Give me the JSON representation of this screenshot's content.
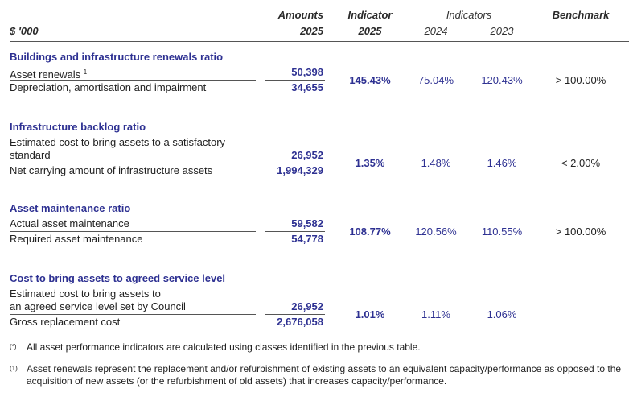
{
  "header": {
    "label": "$ '000",
    "amounts": [
      "Amounts",
      "2025"
    ],
    "indicator": [
      "Indicator",
      "2025"
    ],
    "indicators": "Indicators",
    "years": [
      "2024",
      "2023"
    ],
    "benchmark": "Benchmark"
  },
  "sections": [
    {
      "title": "Buildings and infrastructure renewals ratio",
      "numerator": {
        "label": [
          "Asset renewals"
        ],
        "note": "1",
        "value": "50,398"
      },
      "denominator": {
        "label": "Depreciation, amortisation and impairment",
        "value": "34,655"
      },
      "indicator": "145.43%",
      "y2024": "75.04%",
      "y2023": "120.43%",
      "benchmark": "> 100.00%"
    },
    {
      "title": "Infrastructure backlog ratio",
      "numerator": {
        "label": [
          "Estimated cost to bring assets to a satisfactory",
          "standard"
        ],
        "value": "26,952"
      },
      "denominator": {
        "label": "Net carrying amount of infrastructure assets",
        "value": "1,994,329"
      },
      "indicator": "1.35%",
      "y2024": "1.48%",
      "y2023": "1.46%",
      "benchmark": "< 2.00%"
    },
    {
      "title": "Asset maintenance ratio",
      "numerator": {
        "label": [
          "Actual asset maintenance"
        ],
        "value": "59,582"
      },
      "denominator": {
        "label": "Required asset maintenance",
        "value": "54,778"
      },
      "indicator": "108.77%",
      "y2024": "120.56%",
      "y2023": "110.55%",
      "benchmark": "> 100.00%"
    },
    {
      "title": "Cost to bring assets to agreed service level",
      "numerator": {
        "label": [
          "Estimated cost to bring assets to",
          "an agreed service level set by Council"
        ],
        "value": "26,952"
      },
      "denominator": {
        "label": "Gross replacement cost",
        "value": "2,676,058"
      },
      "indicator": "1.01%",
      "y2024": "1.11%",
      "y2023": "1.06%"
    }
  ],
  "footnotes": [
    {
      "mark": "(*)",
      "text": "All asset performance indicators are calculated using classes identified in the previous table."
    },
    {
      "mark": "(1)",
      "text": "Asset renewals represent the replacement and/or refurbishment of existing assets to an equivalent capacity/performance  as opposed to the acquisition of new assets (or the refurbishment of old assets) that increases capacity/performance."
    }
  ]
}
